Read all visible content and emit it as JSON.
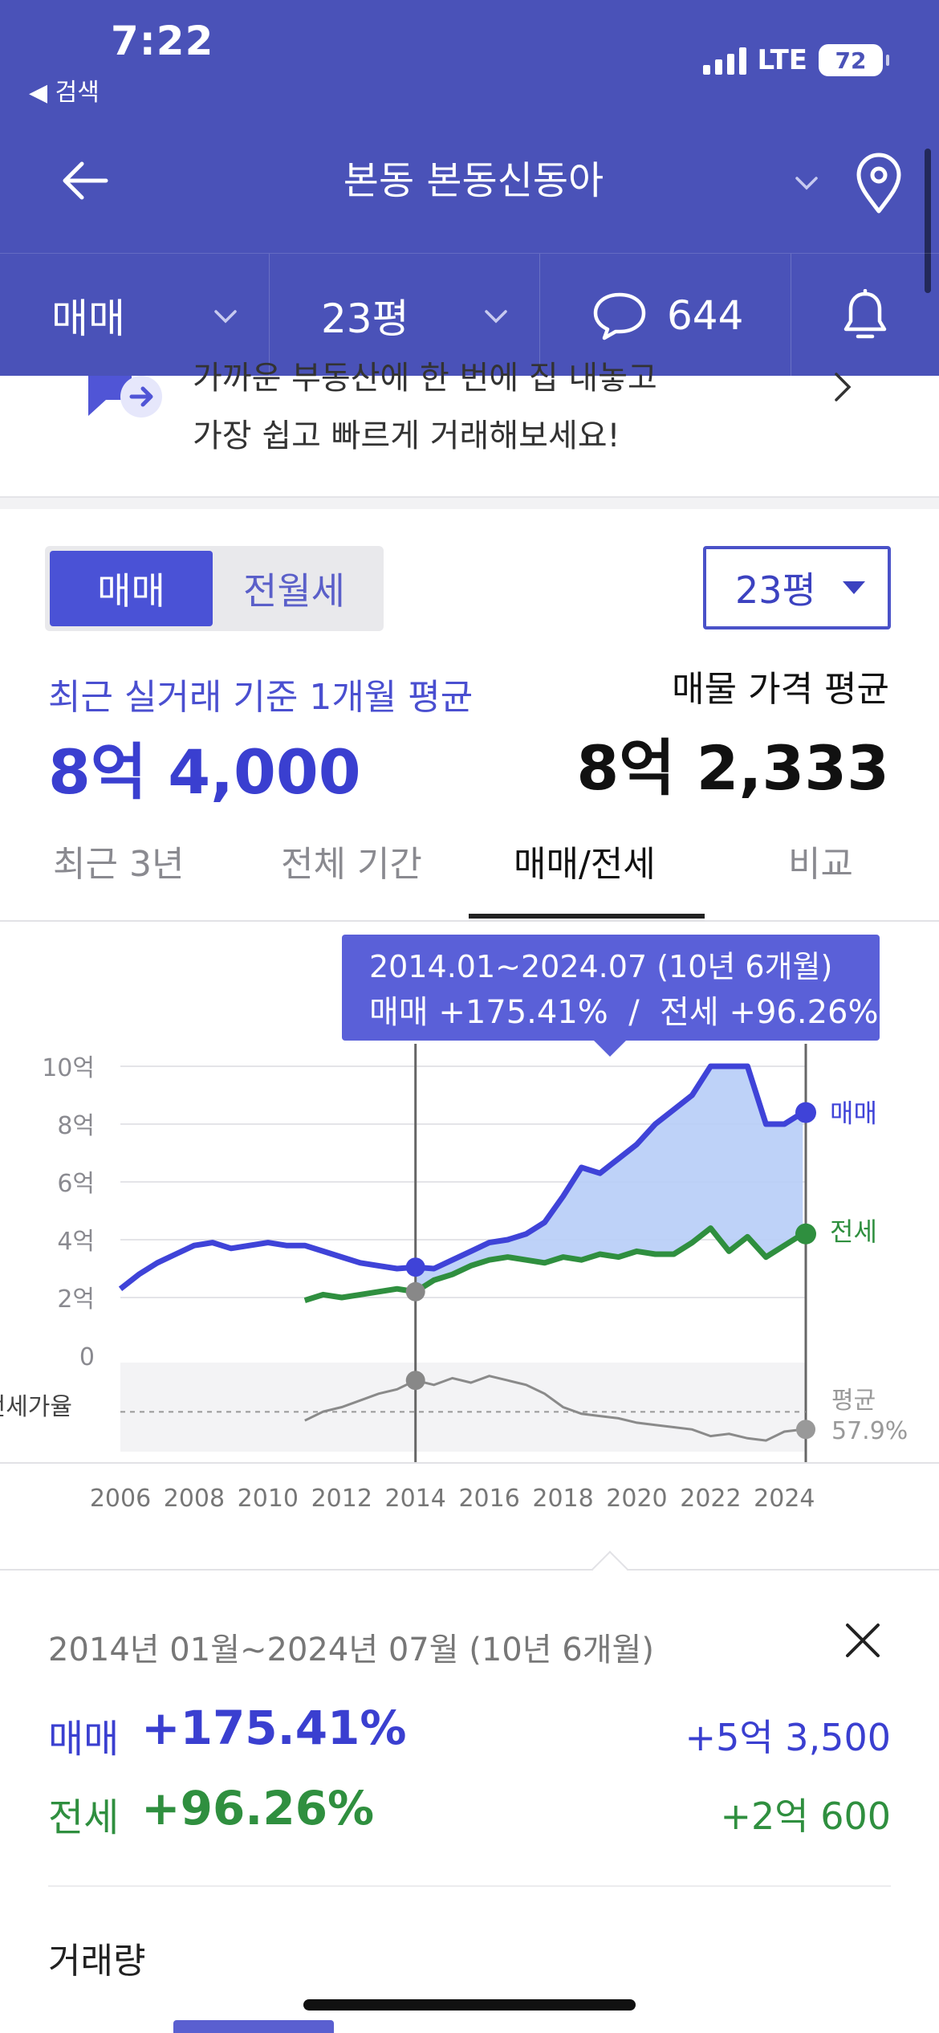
{
  "status": {
    "time": "7:22",
    "back_label": "◀ 검색",
    "network": "LTE",
    "battery": "72"
  },
  "nav": {
    "title": "본동 본동신동아"
  },
  "filters": {
    "trade": "매매",
    "size": "23평",
    "comments": "644"
  },
  "banner": {
    "line1": "가까운 부동산에 한 번에 집 내놓고",
    "line2": "가장 쉽고 빠르게 거래해보세요!"
  },
  "price": {
    "seg_sale": "매매",
    "seg_rent": "전월세",
    "size_select": "23평",
    "avg_label": "최근 실거래 기준 1개월 평균",
    "avg_value": "8억 4,000",
    "listing_label": "매물 가격 평균",
    "listing_value": "8억 2,333"
  },
  "tabs": [
    "최근 3년",
    "전체 기간",
    "매매/전세",
    "비교"
  ],
  "tooltip": {
    "line1": "2014.01~2024.07 (10년 6개월)",
    "line2": "매매 +175.41%  /  전세 +96.26%"
  },
  "chart_data": {
    "type": "line",
    "x_ticks": [
      "2006",
      "2008",
      "2010",
      "2012",
      "2014",
      "2016",
      "2018",
      "2020",
      "2022",
      "2024"
    ],
    "y_ticks": [
      "10억",
      "8억",
      "6억",
      "4억",
      "2억",
      "0"
    ],
    "ylim": [
      0,
      10
    ],
    "series": [
      {
        "name": "매매",
        "color": "#3f43d8",
        "x": [
          2006.0,
          2006.5,
          2007.0,
          2007.5,
          2008.0,
          2008.5,
          2009.0,
          2009.5,
          2010.0,
          2010.5,
          2011.0,
          2011.5,
          2012.0,
          2012.5,
          2013.0,
          2013.5,
          2014.0,
          2014.5,
          2015.0,
          2015.5,
          2016.0,
          2016.5,
          2017.0,
          2017.5,
          2018.0,
          2018.5,
          2019.0,
          2019.5,
          2020.0,
          2020.5,
          2021.0,
          2021.5,
          2022.0,
          2022.5,
          2023.0,
          2023.5,
          2024.0,
          2024.5
        ],
        "values": [
          2.3,
          2.8,
          3.2,
          3.5,
          3.8,
          3.9,
          3.7,
          3.8,
          3.9,
          3.8,
          3.8,
          3.6,
          3.4,
          3.2,
          3.1,
          3.0,
          3.05,
          3.0,
          3.3,
          3.6,
          3.9,
          4.0,
          4.2,
          4.6,
          5.5,
          6.5,
          6.3,
          6.8,
          7.3,
          8.0,
          8.5,
          9.0,
          10.0,
          10.0,
          10.0,
          8.0,
          8.0,
          8.4
        ]
      },
      {
        "name": "전세",
        "color": "#2f8f3f",
        "x": [
          2011.0,
          2011.5,
          2012.0,
          2012.5,
          2013.0,
          2013.5,
          2014.0,
          2014.5,
          2015.0,
          2015.5,
          2016.0,
          2016.5,
          2017.0,
          2017.5,
          2018.0,
          2018.5,
          2019.0,
          2019.5,
          2020.0,
          2020.5,
          2021.0,
          2021.5,
          2022.0,
          2022.5,
          2023.0,
          2023.5,
          2024.0,
          2024.5
        ],
        "values": [
          1.9,
          2.1,
          2.0,
          2.1,
          2.2,
          2.3,
          2.2,
          2.6,
          2.8,
          3.1,
          3.3,
          3.4,
          3.3,
          3.2,
          3.4,
          3.3,
          3.5,
          3.4,
          3.6,
          3.5,
          3.5,
          3.9,
          4.4,
          3.6,
          4.1,
          3.4,
          3.8,
          4.2
        ]
      }
    ],
    "ratio_series": {
      "label": "전세가율",
      "avg_label": "평균",
      "avg_value": "57.9%",
      "x": [
        2011.0,
        2011.5,
        2012.0,
        2012.5,
        2013.0,
        2013.5,
        2014.0,
        2014.5,
        2015.0,
        2015.5,
        2016.0,
        2016.5,
        2017.0,
        2017.5,
        2018.0,
        2018.5,
        2019.0,
        2019.5,
        2020.0,
        2020.5,
        2021.0,
        2021.5,
        2022.0,
        2022.5,
        2023.0,
        2023.5,
        2024.0,
        2024.5
      ],
      "values": [
        54,
        58,
        60,
        63,
        66,
        68,
        72,
        70,
        73,
        71,
        74,
        72,
        70,
        66,
        60,
        57,
        56,
        55,
        53,
        52,
        51,
        50,
        47,
        48,
        46,
        45,
        49,
        50
      ]
    },
    "range": {
      "start": 2014.0,
      "end": 2024.58
    },
    "end_labels": {
      "sale": "매매",
      "jeonse": "전세"
    }
  },
  "summary": {
    "period": "2014년 01월~2024년 07월 (10년 6개월)",
    "sale_label": "매매",
    "sale_pct": "+175.41%",
    "sale_amt": "+5억 3,500",
    "jeonse_label": "전세",
    "jeonse_pct": "+96.26%",
    "jeonse_amt": "+2억 600",
    "volume_title": "거래량"
  },
  "colors": {
    "header": "#4a52b8",
    "accent": "#3a3fd0",
    "green": "#2f8f3f",
    "fill": "#b7cdf7"
  }
}
